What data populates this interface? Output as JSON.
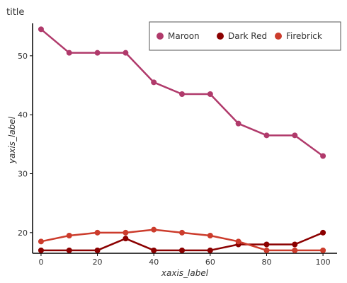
{
  "colors": {
    "maroon": "#b03a6b",
    "dark_red": "#8b0000",
    "firebrick": "#cc3c2c"
  },
  "chart_data": {
    "type": "line",
    "title": "title",
    "xlabel": "xaxis_label",
    "ylabel": "yaxis_label",
    "xlim": [
      -3,
      105
    ],
    "ylim": [
      16.5,
      55.5
    ],
    "x_ticks": [
      0,
      20,
      40,
      60,
      80,
      100
    ],
    "y_ticks": [
      20,
      30,
      40,
      50
    ],
    "grid": false,
    "legend_position": "top-right",
    "legend_entries": [
      "Maroon",
      "Dark Red",
      "Firebrick"
    ],
    "x": [
      0,
      10,
      20,
      30,
      40,
      50,
      60,
      70,
      80,
      90,
      100
    ],
    "series": [
      {
        "name": "Maroon",
        "color_key": "maroon",
        "values": [
          54.5,
          50.5,
          50.5,
          50.5,
          45.5,
          43.5,
          43.5,
          38.5,
          36.5,
          36.5,
          33.0
        ]
      },
      {
        "name": "Dark Red",
        "color_key": "dark_red",
        "values": [
          17.0,
          17.0,
          17.0,
          19.0,
          17.0,
          17.0,
          17.0,
          18.0,
          18.0,
          18.0,
          20.0
        ]
      },
      {
        "name": "Firebrick",
        "color_key": "firebrick",
        "values": [
          18.5,
          19.5,
          20.0,
          20.0,
          20.5,
          20.0,
          19.5,
          18.5,
          17.0,
          17.0,
          17.0
        ]
      }
    ]
  }
}
